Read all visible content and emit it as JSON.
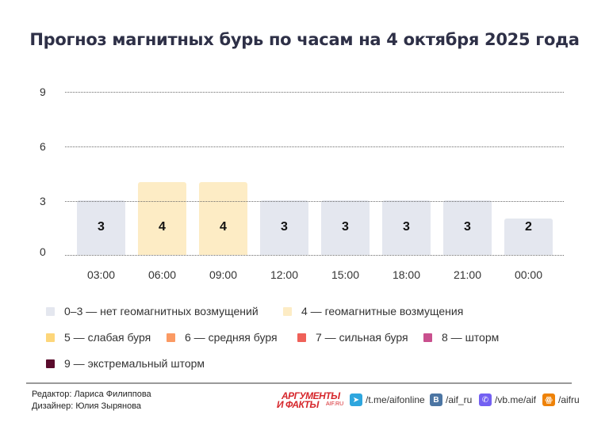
{
  "header": {
    "title": "Прогноз магнитных бурь по часам на 4 октября 2025 года"
  },
  "chart_data": {
    "type": "bar",
    "title": "Прогноз магнитных бурь по часам на 4 октября 2025 года",
    "xlabel": "",
    "ylabel": "",
    "ylim": [
      0,
      9
    ],
    "yticks": [
      "9",
      "6",
      "3",
      "0"
    ],
    "grid": true,
    "categories": [
      "03:00",
      "06:00",
      "09:00",
      "12:00",
      "15:00",
      "18:00",
      "21:00",
      "00:00"
    ],
    "values": [
      3,
      4,
      4,
      3,
      3,
      3,
      3,
      2
    ],
    "value_labels": [
      "3",
      "4",
      "4",
      "3",
      "3",
      "3",
      "3",
      "2"
    ],
    "bar_colors": [
      "#e4e7ef",
      "#fdecc5",
      "#fdecc5",
      "#e4e7ef",
      "#e4e7ef",
      "#e4e7ef",
      "#e4e7ef",
      "#e4e7ef"
    ],
    "legend_position": "bottom"
  },
  "legend": {
    "items": [
      {
        "label": "0–3 — нет геомагнитных возмущений",
        "color": "#e4e7ef"
      },
      {
        "label": "4 — геомагнитные возмущения",
        "color": "#fdecc5"
      },
      {
        "label": "5 — слабая буря",
        "color": "#fdd67a"
      },
      {
        "label": "6 — средняя буря",
        "color": "#fb9a63"
      },
      {
        "label": "7 — сильная буря",
        "color": "#ef6159"
      },
      {
        "label": "8 — шторм",
        "color": "#c9508e"
      },
      {
        "label": "9 — экстремальный шторм",
        "color": "#5a0b2c"
      }
    ]
  },
  "footer": {
    "editor": "Редактор: Лариса Филиппова",
    "designer": "Дизайнер: Юлия Зырянова",
    "logo_top": "АРГУМЕНТЫ",
    "logo_bottom": "И ФАКТЫ",
    "logo_domain": "AIF.RU",
    "social": [
      {
        "icon": "telegram-icon",
        "label": "/t.me/aifonline",
        "color": "#2ea6de",
        "glyph": "➤"
      },
      {
        "icon": "vk-icon",
        "label": "/aif_ru",
        "color": "#4c75a3",
        "glyph": "В"
      },
      {
        "icon": "viber-icon",
        "label": "/vb.me/aif",
        "color": "#7360f2",
        "glyph": "✆"
      },
      {
        "icon": "odnoklassniki-icon",
        "label": "/aifru",
        "color": "#ee8208",
        "glyph": "ꙮ"
      }
    ]
  }
}
